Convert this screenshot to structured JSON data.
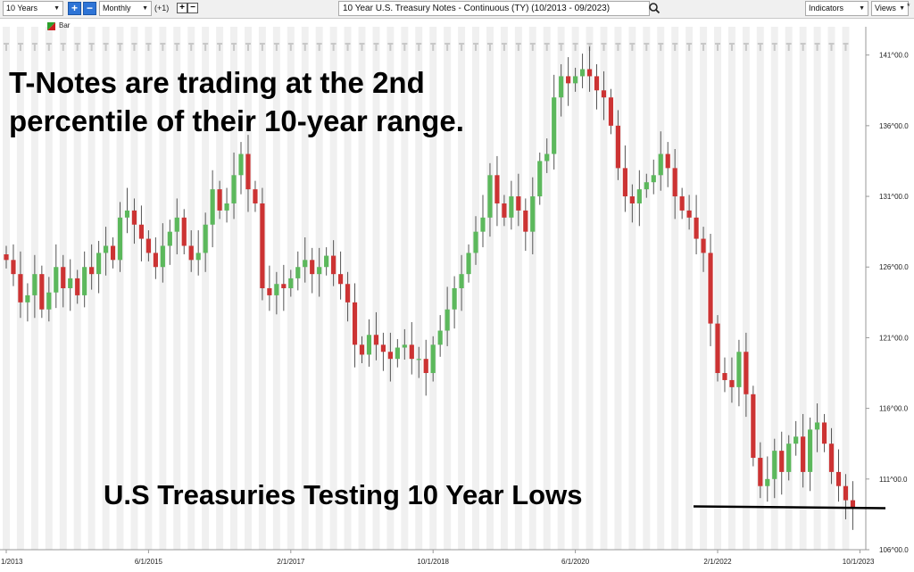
{
  "toolbar": {
    "period_select": "10 Years",
    "interval_select": "Monthly",
    "offset_text": "(+1)",
    "instrument_title": "10 Year U.S. Treasury Notes - Continuous (TY) (10/2013 - 09/2023)",
    "indicators_select": "Indicators",
    "views_select": "Views"
  },
  "legend": {
    "label": "Bar",
    "up_color": "#2ca02c",
    "down_color": "#cc1f1f"
  },
  "annotations": {
    "headline_line1": "T-Notes are trading at the 2nd",
    "headline_line2": "percentile of their 10-year range.",
    "footer": "U.S Treasuries Testing 10 Year Lows"
  },
  "colors": {
    "up_bar": "#5cb85c",
    "down_bar": "#cc3333",
    "band": "#f0f0f0",
    "support_line": "#000000"
  },
  "chart_data": {
    "type": "bar",
    "subtype": "ohlc-candlestick",
    "instrument": "10 Year U.S. Treasury Notes - Continuous (TY)",
    "interval": "Monthly",
    "ylim": [
      106,
      143
    ],
    "y_ticks": [
      {
        "value": 106,
        "label": "106^00.0"
      },
      {
        "value": 111,
        "label": "111^00.0"
      },
      {
        "value": 116,
        "label": "116^00.0"
      },
      {
        "value": 121,
        "label": "121^00.0"
      },
      {
        "value": 126,
        "label": "126^00.0"
      },
      {
        "value": 131,
        "label": "131^00.0"
      },
      {
        "value": 136,
        "label": "136^00.0"
      },
      {
        "value": 141,
        "label": "141^00.0"
      }
    ],
    "x_ticks": [
      {
        "index": 0,
        "label": "1/2013"
      },
      {
        "index": 20,
        "label": "6/1/2015"
      },
      {
        "index": 40,
        "label": "2/1/2017"
      },
      {
        "index": 60,
        "label": "10/1/2018"
      },
      {
        "index": 80,
        "label": "6/1/2020"
      },
      {
        "index": 100,
        "label": "2/1/2022"
      },
      {
        "index": 120,
        "label": "10/1/2023"
      }
    ],
    "closes": [
      126.5,
      125.5,
      123.5,
      124.0,
      125.5,
      123.0,
      124.2,
      126.0,
      124.5,
      125.2,
      124.0,
      126.0,
      125.5,
      127.0,
      127.5,
      126.5,
      129.5,
      130.0,
      129.0,
      128.0,
      127.0,
      126.0,
      127.5,
      128.5,
      129.5,
      127.5,
      126.5,
      127.0,
      129.0,
      131.5,
      130.0,
      130.5,
      132.5,
      134.0,
      131.5,
      130.5,
      124.5,
      124.0,
      124.8,
      124.5,
      125.2,
      126.0,
      126.5,
      125.5,
      126.0,
      126.8,
      125.5,
      124.8,
      123.5,
      120.5,
      119.8,
      121.2,
      120.5,
      120.0,
      119.5,
      120.3,
      120.5,
      119.5,
      119.5,
      118.5,
      120.5,
      121.5,
      123.0,
      124.5,
      125.5,
      127.0,
      128.5,
      129.5,
      132.5,
      130.5,
      129.5,
      131.0,
      130.0,
      128.5,
      131.0,
      133.5,
      134.0,
      138.0,
      139.5,
      139.0,
      139.5,
      140.0,
      139.5,
      138.5,
      138.0,
      136.0,
      133.0,
      131.0,
      130.5,
      131.5,
      132.0,
      132.5,
      134.0,
      133.0,
      131.0,
      130.0,
      129.5,
      128.0,
      127.0,
      122.0,
      118.5,
      118.0,
      117.5,
      120.0,
      117.0,
      112.5,
      110.5,
      111.0,
      113.0,
      111.5,
      113.5,
      114.0,
      111.5,
      114.5,
      115.0,
      113.5,
      111.5,
      110.5,
      109.5,
      109.0
    ],
    "open_2013": 126.9,
    "range_high": 141.0,
    "range_low": 109.0,
    "support_level": 109.0
  }
}
